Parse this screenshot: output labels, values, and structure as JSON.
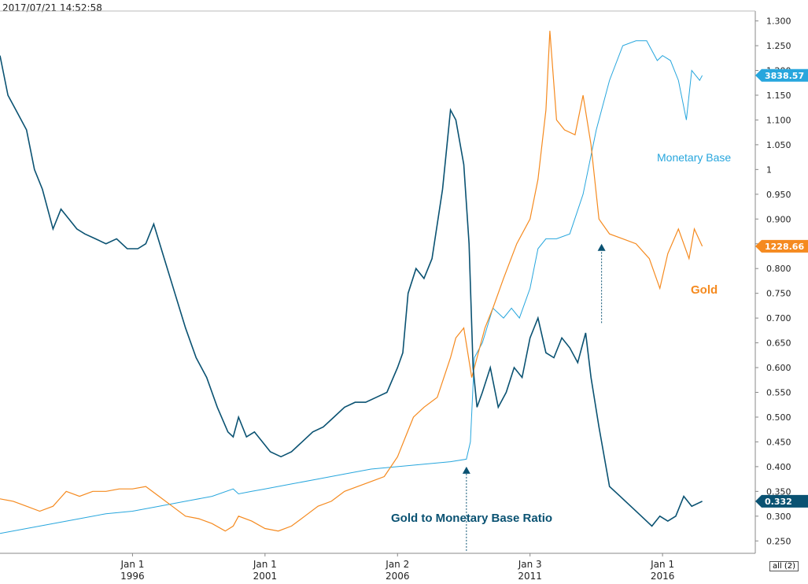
{
  "timestamp": "2017/07/21 14:52:58",
  "range_button": "all (2)",
  "chart_data": {
    "type": "line",
    "title": "",
    "xlabel": "",
    "ylabel": "",
    "x_range": [
      1991.0,
      2019.5
    ],
    "ylim": [
      0.225,
      1.32
    ],
    "y_ticks": [
      "1.300",
      "1.250",
      "1.200",
      "1.150",
      "1.100",
      "1.050",
      "1",
      "0.950",
      "0.900",
      "0.850",
      "0.800",
      "0.750",
      "0.700",
      "0.650",
      "0.600",
      "0.550",
      "0.500",
      "0.450",
      "0.400",
      "0.350",
      "0.300",
      "0.250"
    ],
    "y_tick_values": [
      1.3,
      1.25,
      1.2,
      1.15,
      1.1,
      1.05,
      1.0,
      0.95,
      0.9,
      0.85,
      0.8,
      0.75,
      0.7,
      0.65,
      0.6,
      0.55,
      0.5,
      0.45,
      0.4,
      0.35,
      0.3,
      0.25
    ],
    "x_ticks": [
      {
        "x": 1996,
        "line1": "Jan 1",
        "line2": "1996"
      },
      {
        "x": 2001,
        "line1": "Jan 1",
        "line2": "2001"
      },
      {
        "x": 2006,
        "line1": "Jan 2",
        "line2": "2006"
      },
      {
        "x": 2011,
        "line1": "Jan 3",
        "line2": "2011"
      },
      {
        "x": 2016,
        "line1": "Jan 1",
        "line2": "2016"
      }
    ],
    "series": [
      {
        "name": "Gold to Monetary Base Ratio",
        "color": "#0a5272",
        "last_label": "0.332",
        "x": [
          1991.0,
          1991.3,
          1991.6,
          1992.0,
          1992.3,
          1992.6,
          1993.0,
          1993.3,
          1993.6,
          1993.9,
          1994.2,
          1994.6,
          1995.0,
          1995.4,
          1995.8,
          1996.2,
          1996.5,
          1996.8,
          1997.2,
          1997.6,
          1998.0,
          1998.4,
          1998.8,
          1999.2,
          1999.6,
          1999.8,
          2000.0,
          2000.3,
          2000.6,
          2000.9,
          2001.2,
          2001.6,
          2002.0,
          2002.4,
          2002.8,
          2003.2,
          2003.6,
          2004.0,
          2004.4,
          2004.8,
          2005.2,
          2005.6,
          2006.0,
          2006.2,
          2006.4,
          2006.7,
          2007.0,
          2007.3,
          2007.7,
          2008.0,
          2008.2,
          2008.5,
          2008.7,
          2008.85,
          2009.0,
          2009.2,
          2009.5,
          2009.8,
          2010.1,
          2010.4,
          2010.7,
          2011.0,
          2011.3,
          2011.6,
          2011.9,
          2012.2,
          2012.5,
          2012.8,
          2013.1,
          2013.3,
          2013.6,
          2014.0,
          2014.4,
          2014.8,
          2015.2,
          2015.6,
          2015.9,
          2016.2,
          2016.5,
          2016.8,
          2017.1,
          2017.5
        ],
        "y": [
          1.23,
          1.15,
          1.12,
          1.08,
          1.0,
          0.96,
          0.88,
          0.92,
          0.9,
          0.88,
          0.87,
          0.86,
          0.85,
          0.86,
          0.84,
          0.84,
          0.85,
          0.89,
          0.82,
          0.75,
          0.68,
          0.62,
          0.58,
          0.52,
          0.47,
          0.46,
          0.5,
          0.46,
          0.47,
          0.45,
          0.43,
          0.42,
          0.43,
          0.45,
          0.47,
          0.48,
          0.5,
          0.52,
          0.53,
          0.53,
          0.54,
          0.55,
          0.6,
          0.63,
          0.75,
          0.8,
          0.78,
          0.82,
          0.96,
          1.12,
          1.1,
          1.01,
          0.85,
          0.6,
          0.52,
          0.55,
          0.6,
          0.52,
          0.55,
          0.6,
          0.58,
          0.66,
          0.7,
          0.63,
          0.62,
          0.66,
          0.64,
          0.61,
          0.67,
          0.58,
          0.48,
          0.36,
          0.34,
          0.32,
          0.3,
          0.28,
          0.3,
          0.29,
          0.3,
          0.34,
          0.32,
          0.33
        ]
      },
      {
        "name": "Gold",
        "color": "#f58a1f",
        "last_label": "1228.66",
        "x": [
          1991.0,
          1991.5,
          1992.0,
          1992.5,
          1993.0,
          1993.5,
          1994.0,
          1994.5,
          1995.0,
          1995.5,
          1996.0,
          1996.5,
          1997.0,
          1997.5,
          1998.0,
          1998.5,
          1999.0,
          1999.5,
          1999.8,
          2000.0,
          2000.5,
          2001.0,
          2001.5,
          2002.0,
          2002.5,
          2003.0,
          2003.5,
          2004.0,
          2004.5,
          2005.0,
          2005.5,
          2006.0,
          2006.3,
          2006.6,
          2007.0,
          2007.5,
          2008.0,
          2008.2,
          2008.5,
          2008.8,
          2009.0,
          2009.3,
          2009.6,
          2010.0,
          2010.5,
          2011.0,
          2011.3,
          2011.6,
          2011.75,
          2012.0,
          2012.3,
          2012.7,
          2013.0,
          2013.3,
          2013.6,
          2014.0,
          2014.5,
          2015.0,
          2015.5,
          2015.9,
          2016.2,
          2016.6,
          2017.0,
          2017.2,
          2017.5
        ],
        "y": [
          0.335,
          0.33,
          0.32,
          0.31,
          0.32,
          0.35,
          0.34,
          0.35,
          0.35,
          0.355,
          0.355,
          0.36,
          0.34,
          0.32,
          0.3,
          0.295,
          0.285,
          0.27,
          0.28,
          0.3,
          0.29,
          0.275,
          0.27,
          0.28,
          0.3,
          0.32,
          0.33,
          0.35,
          0.36,
          0.37,
          0.38,
          0.42,
          0.46,
          0.5,
          0.52,
          0.54,
          0.62,
          0.66,
          0.68,
          0.58,
          0.62,
          0.68,
          0.72,
          0.78,
          0.85,
          0.9,
          0.98,
          1.12,
          1.28,
          1.1,
          1.08,
          1.07,
          1.15,
          1.05,
          0.9,
          0.87,
          0.86,
          0.85,
          0.82,
          0.76,
          0.83,
          0.88,
          0.82,
          0.88,
          0.845
        ]
      },
      {
        "name": "Monetary Base",
        "color": "#27a6dd",
        "last_label": "3838.57",
        "x": [
          1991.0,
          1992.0,
          1993.0,
          1994.0,
          1995.0,
          1996.0,
          1997.0,
          1998.0,
          1999.0,
          1999.8,
          2000.0,
          2000.5,
          2001.0,
          2002.0,
          2003.0,
          2004.0,
          2005.0,
          2006.0,
          2007.0,
          2008.0,
          2008.6,
          2008.75,
          2008.9,
          2009.2,
          2009.6,
          2010.0,
          2010.3,
          2010.6,
          2011.0,
          2011.3,
          2011.6,
          2012.0,
          2012.5,
          2013.0,
          2013.5,
          2014.0,
          2014.5,
          2015.0,
          2015.4,
          2015.8,
          2016.0,
          2016.3,
          2016.6,
          2016.9,
          2017.1,
          2017.4,
          2017.5
        ],
        "y": [
          0.265,
          0.275,
          0.285,
          0.295,
          0.305,
          0.31,
          0.32,
          0.33,
          0.34,
          0.355,
          0.345,
          0.35,
          0.355,
          0.365,
          0.375,
          0.385,
          0.395,
          0.4,
          0.405,
          0.41,
          0.415,
          0.45,
          0.62,
          0.65,
          0.72,
          0.7,
          0.72,
          0.7,
          0.76,
          0.84,
          0.86,
          0.86,
          0.87,
          0.95,
          1.08,
          1.18,
          1.25,
          1.26,
          1.26,
          1.22,
          1.23,
          1.22,
          1.18,
          1.1,
          1.2,
          1.18,
          1.19
        ]
      }
    ],
    "annotations": [
      {
        "text": "Monetary Base",
        "series": "Monetary Base"
      },
      {
        "text": "Gold",
        "series": "Gold"
      },
      {
        "text": "Gold to Monetary Base Ratio",
        "series": "Gold to Monetary Base Ratio"
      }
    ],
    "arrows": [
      {
        "x": 2008.6,
        "y_from": 0.23,
        "y_to": 0.4
      },
      {
        "x": 2013.7,
        "y_from": 0.69,
        "y_to": 0.85
      }
    ]
  }
}
